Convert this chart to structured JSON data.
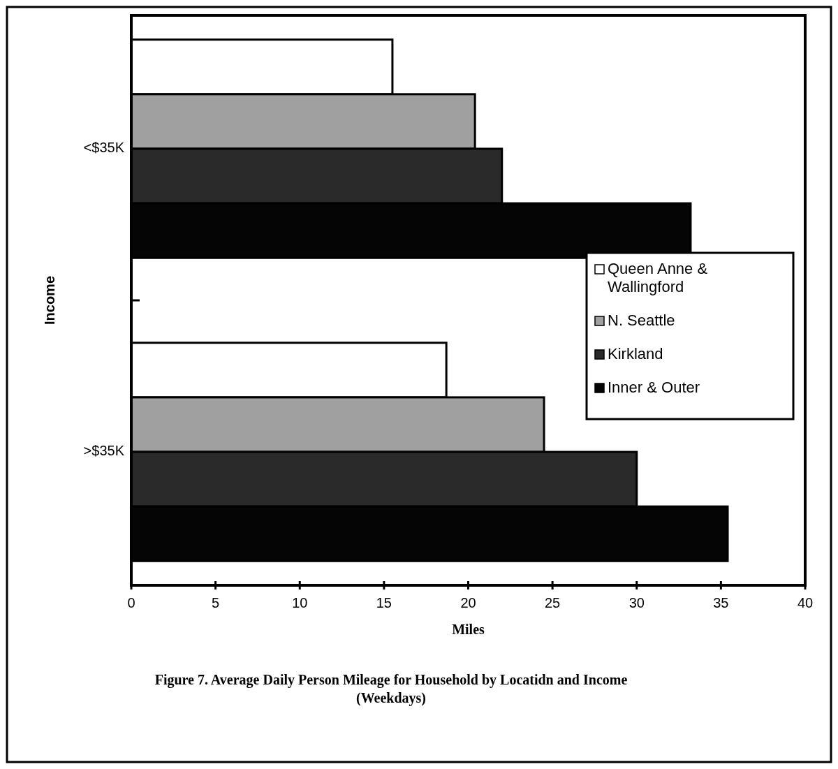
{
  "chart_data": {
    "type": "bar",
    "orientation": "horizontal",
    "title": "Figure 7. Average Daily Person Mileage for Household by Locatidn and Income (Weekdays)",
    "xlabel": "Miles",
    "ylabel": "Income",
    "categories": [
      "<$35K",
      ">$35K"
    ],
    "series": [
      {
        "name": "Queen Anne & Wallingford",
        "color": "#ffffff",
        "values": [
          15.5,
          18.7
        ]
      },
      {
        "name": "N. Seattle",
        "color": "#a0a0a0",
        "values": [
          20.4,
          24.5
        ]
      },
      {
        "name": "Kirkland",
        "color": "#2a2a2a",
        "values": [
          22.0,
          30.0
        ]
      },
      {
        "name": "Inner & Outer",
        "color": "#050505",
        "values": [
          33.2,
          35.4
        ]
      }
    ],
    "xlim": [
      0,
      40
    ],
    "xticks": [
      0,
      5,
      10,
      15,
      20,
      25,
      30,
      35,
      40
    ],
    "grid": false,
    "legend": "right"
  }
}
